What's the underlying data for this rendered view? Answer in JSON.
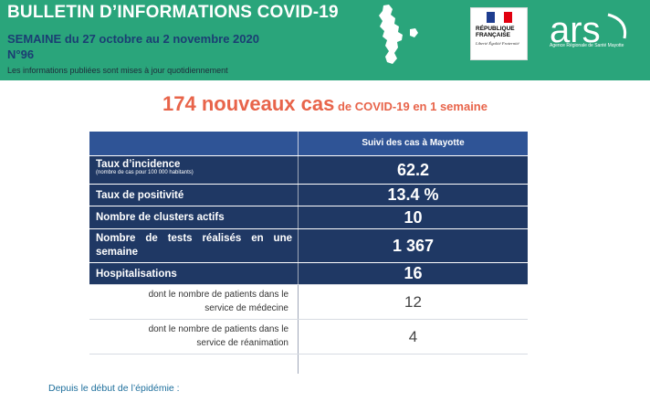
{
  "header": {
    "title": "BULLETIN D’INFORMATIONS COVID-19",
    "subtitle": "SEMAINE du 27 octobre au 2 novembre 2020",
    "number": "N°96",
    "note": "Les informations publiées sont mises à jour quotidiennement"
  },
  "logos": {
    "republique": "RÉPUBLIQUE FRANÇAISE",
    "motto": "Liberté Égalité Fraternité",
    "ars": "ars",
    "ars_caption": "Agence Régionale de Santé Mayotte"
  },
  "headline": {
    "big": "174 nouveaux cas",
    "small": " de COVID-19 en 1 semaine"
  },
  "table": {
    "column_header": "Suivi des cas à Mayotte",
    "rows": [
      {
        "label": "Taux d’incidence",
        "sub": "(nombre de cas pour 100 000 habitants)",
        "value": "62.2"
      },
      {
        "label": "Taux de positivité",
        "value": "13.4 %"
      },
      {
        "label": "Nombre de clusters actifs",
        "value": "10"
      },
      {
        "label": "Nombre de tests réalisés en une semaine",
        "value": "1 367"
      },
      {
        "label": "Hospitalisations",
        "value": "16"
      },
      {
        "label": "dont le nombre de patients dans le service de médecine",
        "value": "12"
      },
      {
        "label": "dont le nombre de patients dans le service de réanimation",
        "value": "4"
      }
    ]
  },
  "footer": {
    "text": "Depuis le début de l’épidémie :"
  },
  "colors": {
    "header_green": "#2aa57b",
    "navy": "#1f3864",
    "table_header_blue": "#2f5496",
    "headline_orange": "#e8644a"
  }
}
